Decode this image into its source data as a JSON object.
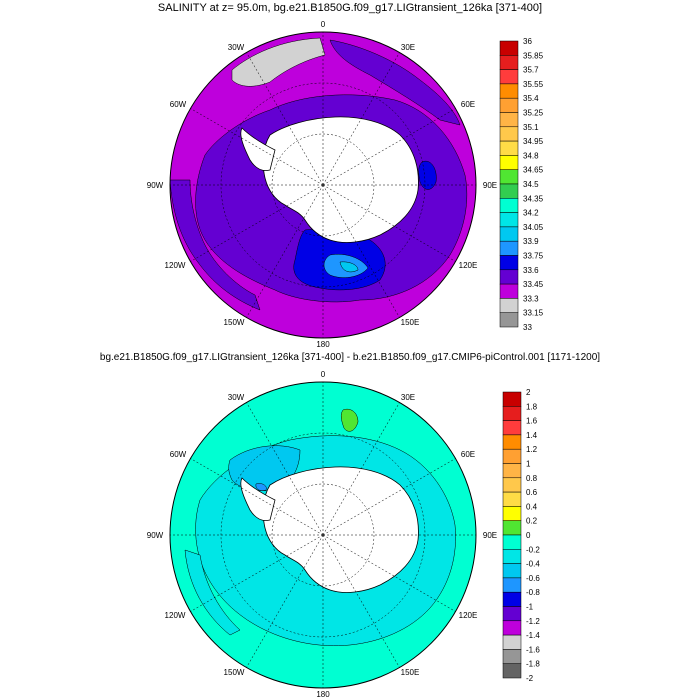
{
  "top_panel": {
    "title": "SALINITY at z=  95.0m, bg.e21.B1850G.f09_g17.LIGtransient_126ka [371-400]",
    "colorbar": {
      "labels": [
        "36",
        "35.85",
        "35.7",
        "35.55",
        "35.4",
        "35.25",
        "35.1",
        "34.95",
        "34.8",
        "34.65",
        "34.5",
        "34.35",
        "34.2",
        "34.05",
        "33.9",
        "33.75",
        "33.6",
        "33.45",
        "33.3",
        "33.15",
        "33"
      ],
      "colors": [
        "#c80000",
        "#e61e1e",
        "#ff3c3c",
        "#ff8c00",
        "#ffa032",
        "#ffb446",
        "#ffc84b",
        "#ffdc46",
        "#ffff00",
        "#50e632",
        "#32cd50",
        "#00ffd2",
        "#00e6e6",
        "#00c8f0",
        "#1e96ff",
        "#0000e6",
        "#6400d2",
        "#be00dc",
        "#d2d2d2",
        "#969696"
      ]
    },
    "lon_labels": {
      "n": "0",
      "ne": "30E",
      "e1": "60E",
      "e": "90E",
      "se1": "120E",
      "se": "150E",
      "s": "180",
      "sw": "150W",
      "sw1": "120W",
      "w": "90W",
      "w1": "60W",
      "nw": "30W"
    }
  },
  "bottom_panel": {
    "title": "bg.e21.B1850G.f09_g17.LIGtransient_126ka [371-400] - b.e21.B1850.f09_g17.CMIP6-piControl.001 [1171-1200]",
    "colorbar": {
      "labels": [
        "2",
        "1.8",
        "1.6",
        "1.4",
        "1.2",
        "1",
        "0.8",
        "0.6",
        "0.4",
        "0.2",
        "0",
        "-0.2",
        "-0.4",
        "-0.6",
        "-0.8",
        "-1",
        "-1.2",
        "-1.4",
        "-1.6",
        "-1.8",
        "-2"
      ],
      "colors": [
        "#c80000",
        "#e61e1e",
        "#ff3c3c",
        "#ff8c00",
        "#ffa032",
        "#ffb446",
        "#ffc84b",
        "#ffdc46",
        "#ffff00",
        "#50e632",
        "#00ffd2",
        "#00e6e6",
        "#00c8f0",
        "#1e96ff",
        "#0000e6",
        "#6400d2",
        "#be00dc",
        "#d2d2d2",
        "#969696",
        "#646464"
      ]
    },
    "lon_labels": {
      "n": "0",
      "ne": "30E",
      "e1": "60E",
      "e": "90E",
      "se1": "120E",
      "se": "150E",
      "s": "180",
      "sw": "150W",
      "sw1": "120W",
      "w": "90W",
      "w1": "60W",
      "nw": "30W"
    }
  }
}
